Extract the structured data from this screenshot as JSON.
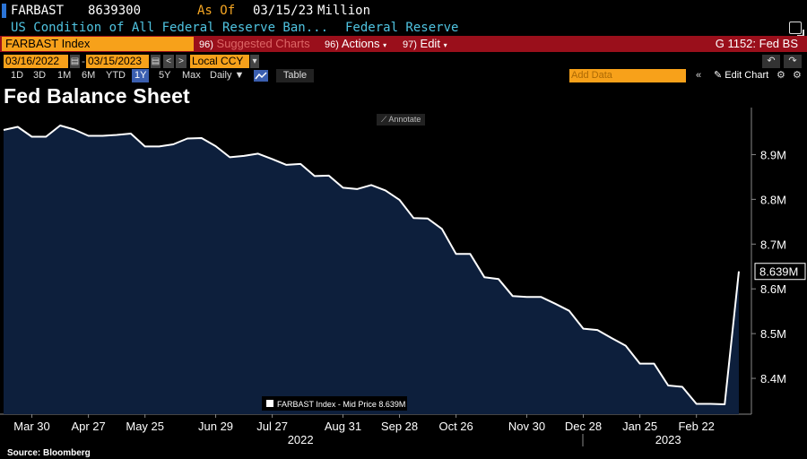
{
  "header": {
    "ticker": "FARBAST",
    "last_value": "8639300",
    "asof_label": "As Of",
    "asof_date": "03/15/23",
    "unit": "Million",
    "description": "US Condition of All Federal Reserve Ban...",
    "source_name": "Federal Reserve"
  },
  "actionbar": {
    "index": "FARBAST Index",
    "suggested_num": "96)",
    "suggested": "Suggested Charts",
    "actions_num": "96)",
    "actions": "Actions",
    "edit_num": "97)",
    "edit": "Edit",
    "chart_name": "G 1152: Fed BS"
  },
  "controls": {
    "start_date": "03/16/2022",
    "end_date": "03/15/2023",
    "currency": "Local CCY",
    "periods": [
      "1D",
      "3D",
      "1M",
      "6M",
      "YTD",
      "1Y",
      "5Y",
      "Max"
    ],
    "active_period": "1Y",
    "frequency": "Daily",
    "table": "Table",
    "add_data_placeholder": "Add Data",
    "edit_chart": "Edit Chart",
    "annotate": "Annotate"
  },
  "colors": {
    "accent_orange": "#f7a11a",
    "action_bar_red": "#9a0f1b",
    "area_fill": "#0d1f3c",
    "line": "#ffffff",
    "active_tab": "#3b5fb0"
  },
  "icons": [
    "popout-icon",
    "calendar-icon",
    "chevron-left-icon",
    "chevron-right-icon",
    "undo-icon",
    "redo-icon",
    "line-chart-icon",
    "collapse-icon",
    "pencil-icon",
    "gear-icon",
    "settings-icon"
  ],
  "chart_data": {
    "type": "area",
    "title": "Fed Balance Sheet",
    "series": [
      {
        "name": "FARBAST Index - Mid Price",
        "legend": "FARBAST Index - Mid Price 8.639M",
        "x": [
          "2022-03-16",
          "2022-03-23",
          "2022-03-30",
          "2022-04-06",
          "2022-04-13",
          "2022-04-20",
          "2022-04-27",
          "2022-05-04",
          "2022-05-11",
          "2022-05-18",
          "2022-05-25",
          "2022-06-01",
          "2022-06-08",
          "2022-06-15",
          "2022-06-22",
          "2022-06-29",
          "2022-07-06",
          "2022-07-13",
          "2022-07-20",
          "2022-07-27",
          "2022-08-03",
          "2022-08-10",
          "2022-08-17",
          "2022-08-24",
          "2022-08-31",
          "2022-09-07",
          "2022-09-14",
          "2022-09-21",
          "2022-09-28",
          "2022-10-05",
          "2022-10-12",
          "2022-10-19",
          "2022-10-26",
          "2022-11-02",
          "2022-11-09",
          "2022-11-16",
          "2022-11-23",
          "2022-11-30",
          "2022-12-07",
          "2022-12-14",
          "2022-12-21",
          "2022-12-28",
          "2023-01-04",
          "2023-01-11",
          "2023-01-18",
          "2023-01-25",
          "2023-02-01",
          "2023-02-08",
          "2023-02-15",
          "2023-02-22",
          "2023-03-01",
          "2023-03-08",
          "2023-03-15"
        ],
        "values": [
          8.955,
          8.962,
          8.94,
          8.94,
          8.965,
          8.956,
          8.942,
          8.942,
          8.944,
          8.947,
          8.918,
          8.918,
          8.923,
          8.936,
          8.937,
          8.919,
          8.894,
          8.897,
          8.902,
          8.89,
          8.877,
          8.879,
          8.852,
          8.853,
          8.826,
          8.823,
          8.832,
          8.82,
          8.799,
          8.758,
          8.757,
          8.734,
          8.678,
          8.678,
          8.626,
          8.622,
          8.584,
          8.582,
          8.582,
          8.567,
          8.551,
          8.511,
          8.508,
          8.49,
          8.473,
          8.433,
          8.433,
          8.384,
          8.381,
          8.343,
          8.343,
          8.342,
          8.639
        ]
      }
    ],
    "y_ticks": [
      "8.4M",
      "8.5M",
      "8.6M",
      "8.7M",
      "8.8M",
      "8.9M"
    ],
    "y_tick_values": [
      8.4,
      8.5,
      8.6,
      8.7,
      8.8,
      8.9
    ],
    "ylim": [
      8.32,
      8.985
    ],
    "last_label": "8.639M",
    "x_ticks": [
      {
        "label": "Mar 30",
        "date": "2022-03-30"
      },
      {
        "label": "Apr 27",
        "date": "2022-04-27"
      },
      {
        "label": "May 25",
        "date": "2022-05-25"
      },
      {
        "label": "Jun 29",
        "date": "2022-06-29"
      },
      {
        "label": "Jul 27",
        "date": "2022-07-27"
      },
      {
        "label": "Aug 31",
        "date": "2022-08-31"
      },
      {
        "label": "Sep 28",
        "date": "2022-09-28"
      },
      {
        "label": "Oct 26",
        "date": "2022-10-26"
      },
      {
        "label": "Nov 30",
        "date": "2022-11-30"
      },
      {
        "label": "Dec 28",
        "date": "2022-12-28"
      },
      {
        "label": "Jan 25",
        "date": "2023-01-25"
      },
      {
        "label": "Feb 22",
        "date": "2023-02-22"
      }
    ],
    "year_labels": [
      {
        "label": "2022",
        "date": "2022-08-10"
      },
      {
        "label": "2023",
        "date": "2023-02-08"
      }
    ],
    "xlim": [
      "2022-03-16",
      "2023-03-15"
    ],
    "grid": false,
    "legend_position": "bottom-center",
    "source": "Source: Bloomberg"
  }
}
